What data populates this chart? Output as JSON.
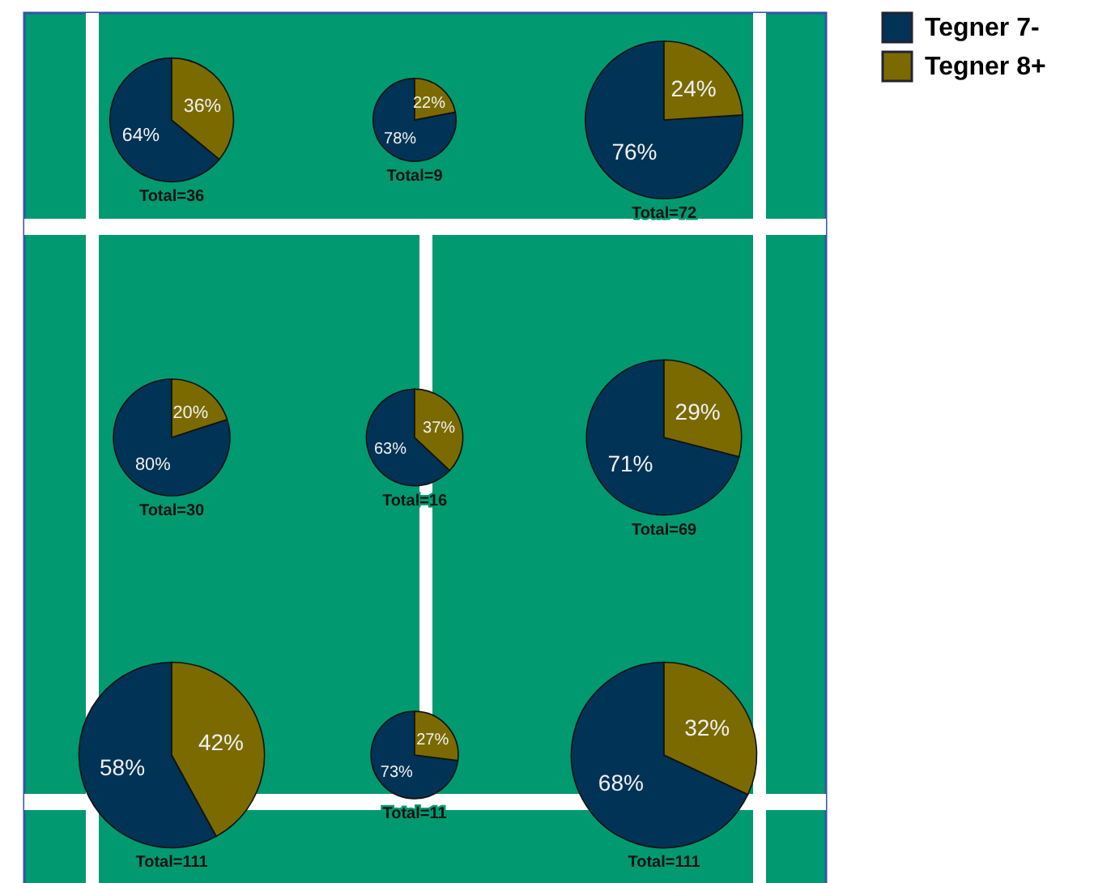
{
  "chart_data": [
    {
      "type": "pie",
      "categories": [
        "Tegner 7-",
        "Tegner 8+"
      ],
      "values": [
        64,
        36
      ],
      "value_labels": [
        "64%",
        "36%"
      ],
      "colors": [
        "#003355",
        "#7a6a00"
      ],
      "annotations": [
        "Total=36"
      ],
      "legend": "right"
    },
    {
      "type": "pie",
      "values": [
        78,
        22
      ],
      "value_labels": [
        "78%",
        "22%"
      ],
      "colors": [
        "#003355",
        "#7a6a00"
      ],
      "annotations": [
        "Total=9"
      ]
    },
    {
      "type": "pie",
      "values": [
        76,
        24
      ],
      "value_labels": [
        "76%",
        "24%"
      ],
      "colors": [
        "#003355",
        "#7a6a00"
      ],
      "annotations": [
        "Total=72"
      ]
    },
    {
      "type": "pie",
      "values": [
        80,
        20
      ],
      "value_labels": [
        "80%",
        "20%"
      ],
      "colors": [
        "#003355",
        "#7a6a00"
      ],
      "annotations": [
        "Total=30"
      ]
    },
    {
      "type": "pie",
      "values": [
        63,
        37
      ],
      "value_labels": [
        "63%",
        "37%"
      ],
      "colors": [
        "#003355",
        "#7a6a00"
      ],
      "annotations": [
        "Total=16"
      ]
    },
    {
      "type": "pie",
      "values": [
        71,
        29
      ],
      "value_labels": [
        "71%",
        "29%"
      ],
      "colors": [
        "#003355",
        "#7a6a00"
      ],
      "annotations": [
        "Total=69"
      ]
    },
    {
      "type": "pie",
      "values": [
        58,
        42
      ],
      "value_labels": [
        "58%",
        "42%"
      ],
      "colors": [
        "#003355",
        "#7a6a00"
      ],
      "annotations": [
        "Total=111"
      ]
    },
    {
      "type": "pie",
      "values": [
        73,
        27
      ],
      "value_labels": [
        "73%",
        "27%"
      ],
      "colors": [
        "#003355",
        "#7a6a00"
      ],
      "annotations": [
        "Total=11"
      ]
    },
    {
      "type": "pie",
      "values": [
        68,
        32
      ],
      "value_labels": [
        "68%",
        "32%"
      ],
      "colors": [
        "#003355",
        "#7a6a00"
      ],
      "annotations": [
        "Total=111"
      ]
    }
  ]
}
